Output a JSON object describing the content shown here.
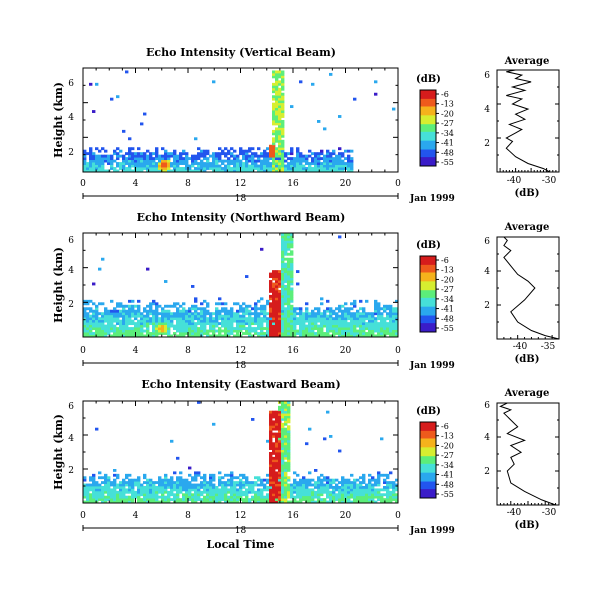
{
  "figure": {
    "xlabel": "Local Time",
    "colorbar_unit": "(dB)",
    "colorbar_ticks": [
      "-6",
      "-13",
      "-20",
      "-27",
      "-34",
      "-41",
      "-48",
      "-55"
    ],
    "x_ticks": [
      "0",
      "4",
      "8",
      "12",
      "16",
      "20",
      "0"
    ],
    "x_day": "18",
    "x_month": "Jan 1999",
    "y_ticks": [
      "2",
      "4",
      "6"
    ],
    "ylabel": "Height (km)",
    "avg_title": "Average",
    "avg_xlabel": "(dB)",
    "colors": [
      "#3a1cc8",
      "#2255ee",
      "#2aa8ee",
      "#46e0d8",
      "#5cee7a",
      "#d6ee30",
      "#f5b21c",
      "#ee5a1c",
      "#d61c1c"
    ]
  },
  "chart_data": [
    {
      "type": "heatmap",
      "title": "Echo Intensity (Vertical Beam)",
      "x_range_hours": [
        0,
        24
      ],
      "y_range_km": [
        0,
        6
      ],
      "color_range_db": [
        -55,
        -6
      ],
      "features": [
        {
          "kind": "boundary_layer",
          "hours": [
            0,
            20.5
          ],
          "top_km": 1.2,
          "level": 0.15
        },
        {
          "kind": "cell",
          "hour": 6.2,
          "km": 0.4,
          "level": 0.9
        },
        {
          "kind": "plume",
          "hour": 14.9,
          "top_km": 5.9,
          "level": 0.55
        },
        {
          "kind": "band",
          "hour": 14.4,
          "km": [
            0.9,
            1.5
          ],
          "level": 0.85
        }
      ]
    },
    {
      "type": "line",
      "title": "Average",
      "xlabel": "(dB)",
      "x_ticks": [
        "-40",
        "-30"
      ],
      "xlim": [
        -46,
        -26
      ],
      "ylim": [
        0,
        6
      ],
      "x": [
        -29,
        -31,
        -36,
        -40,
        -43,
        -41,
        -43,
        -40,
        -38,
        -42,
        -37,
        -40,
        -36,
        -41,
        -38,
        -43,
        -37,
        -41,
        -35,
        -40,
        -38,
        -43,
        -40
      ],
      "y": [
        0,
        0.2,
        0.5,
        0.9,
        1.4,
        1.8,
        2.0,
        2.3,
        2.5,
        2.8,
        3.1,
        3.4,
        3.7,
        4.0,
        4.3,
        4.5,
        4.8,
        5.0,
        5.3,
        5.5,
        5.7,
        5.9,
        6.0
      ]
    },
    {
      "type": "heatmap",
      "title": "Echo Intensity (Northward Beam)",
      "x_range_hours": [
        0,
        24
      ],
      "y_range_km": [
        0,
        6
      ],
      "color_range_db": [
        -55,
        -6
      ],
      "features": [
        {
          "kind": "boundary_layer",
          "hours": [
            0,
            24
          ],
          "top_km": 1.8,
          "level": 0.25
        },
        {
          "kind": "cell",
          "hour": 6.0,
          "km": 0.5,
          "level": 0.8
        },
        {
          "kind": "plume",
          "hour": 14.7,
          "top_km": 3.8,
          "level": 0.95
        },
        {
          "kind": "plume",
          "hour": 15.5,
          "top_km": 6.0,
          "level": 0.45
        }
      ]
    },
    {
      "type": "line",
      "title": "Average",
      "xlabel": "(dB)",
      "x_ticks": [
        "-40",
        "-35"
      ],
      "xlim": [
        -43,
        -34
      ],
      "ylim": [
        0,
        6
      ],
      "x": [
        -34,
        -36,
        -38,
        -40,
        -41,
        -39,
        -37.5,
        -38.5,
        -40,
        -41,
        -42,
        -41,
        -42,
        -41.5,
        -42
      ],
      "y": [
        0,
        0.2,
        0.5,
        1.0,
        1.6,
        2.3,
        3.0,
        3.4,
        3.8,
        4.3,
        4.8,
        5.2,
        5.5,
        5.8,
        6.0
      ]
    },
    {
      "type": "heatmap",
      "title": "Echo Intensity (Eastward Beam)",
      "x_range_hours": [
        0,
        24
      ],
      "y_range_km": [
        0,
        6
      ],
      "color_range_db": [
        -55,
        -6
      ],
      "features": [
        {
          "kind": "boundary_layer",
          "hours": [
            0,
            24
          ],
          "top_km": 1.5,
          "level": 0.25
        },
        {
          "kind": "plume",
          "hour": 14.6,
          "top_km": 5.4,
          "level": 0.95
        },
        {
          "kind": "plume",
          "hour": 15.4,
          "top_km": 6.0,
          "level": 0.5
        }
      ]
    },
    {
      "type": "line",
      "title": "Average",
      "xlabel": "(dB)",
      "x_ticks": [
        "-40",
        "-30"
      ],
      "xlim": [
        -44,
        -26
      ],
      "ylim": [
        0,
        6
      ],
      "x": [
        -27,
        -31,
        -36,
        -40,
        -41,
        -39,
        -40,
        -37,
        -40,
        -36,
        -41,
        -38,
        -40,
        -42,
        -40,
        -43,
        -41
      ],
      "y": [
        0,
        0.3,
        0.8,
        1.3,
        2.0,
        2.4,
        2.8,
        3.1,
        3.5,
        3.8,
        4.2,
        4.6,
        5.0,
        5.4,
        5.6,
        5.8,
        6.0
      ]
    }
  ]
}
